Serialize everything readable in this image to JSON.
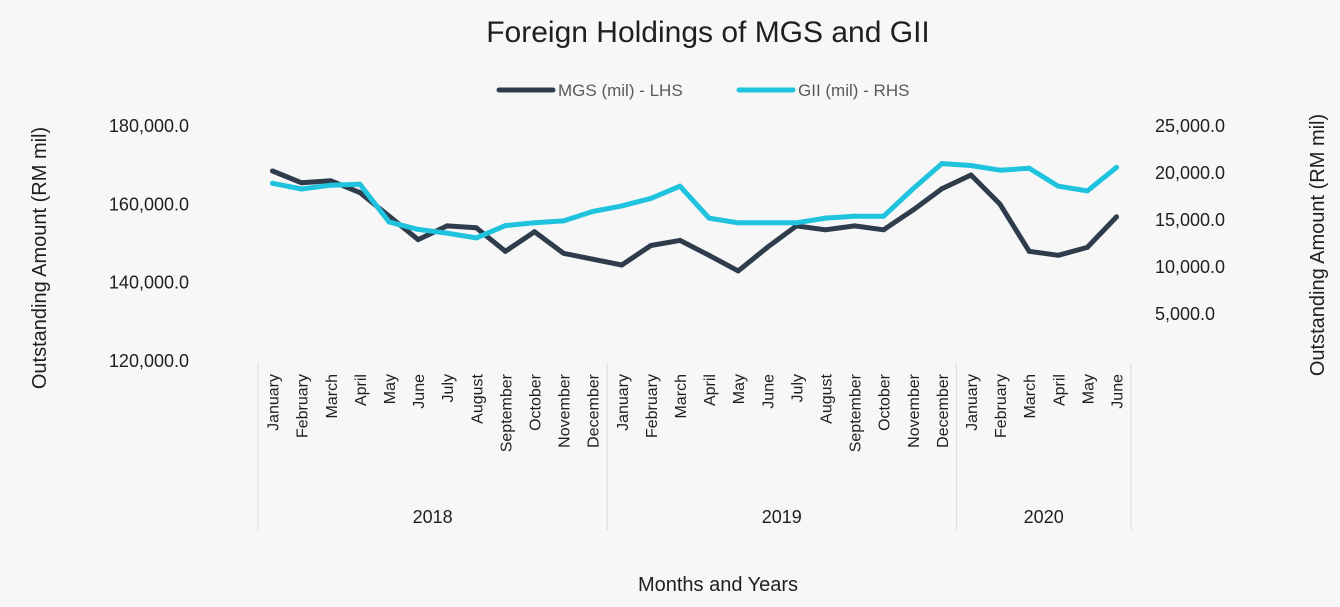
{
  "chart_data": {
    "type": "line",
    "title": "Foreign Holdings of MGS and GII",
    "xlabel": "Months and Years",
    "ylabel_left": "Outstanding Amount (RM mil)",
    "ylabel_right": "Outstanding Amount (RM mil)",
    "ylim_left": [
      120000,
      180000
    ],
    "ylim_right": [
      0,
      25000
    ],
    "yticks_left": [
      "120,000.0",
      "140,000.0",
      "160,000.0",
      "180,000.0"
    ],
    "yticks_right": [
      "5,000.0",
      "10,000.0",
      "15,000.0",
      "20,000.0",
      "25,000.0"
    ],
    "legend_position": "top-center",
    "grid": false,
    "groups": [
      {
        "label": "2018",
        "months": [
          "January",
          "February",
          "March",
          "April",
          "May",
          "June",
          "July",
          "August",
          "September",
          "October",
          "November",
          "December"
        ]
      },
      {
        "label": "2019",
        "months": [
          "January",
          "February",
          "March",
          "April",
          "May",
          "June",
          "July",
          "August",
          "September",
          "October",
          "November",
          "December"
        ]
      },
      {
        "label": "2020",
        "months": [
          "January",
          "February",
          "March",
          "April",
          "May",
          "June"
        ]
      }
    ],
    "series": [
      {
        "name": "MGS (mil) - LHS",
        "axis": "left",
        "color": "#2e3c4c",
        "values": [
          168500,
          165500,
          166000,
          163000,
          157000,
          151000,
          154500,
          154000,
          148000,
          153000,
          147500,
          146000,
          144500,
          149500,
          150800,
          147000,
          143000,
          149000,
          154500,
          153500,
          154500,
          153500,
          158500,
          164000,
          167500,
          160000,
          148000,
          147000,
          149000,
          156800
        ]
      },
      {
        "name": "GII (mil) - RHS",
        "axis": "right",
        "color": "#1fc3de",
        "values": [
          18900,
          18300,
          18700,
          18800,
          14800,
          14000,
          13600,
          13100,
          14400,
          14700,
          14900,
          15900,
          16500,
          17300,
          18600,
          15200,
          14700,
          14700,
          14700,
          15200,
          15400,
          15400,
          18300,
          21000,
          20800,
          20300,
          20500,
          18600,
          18100,
          20600
        ]
      }
    ]
  }
}
